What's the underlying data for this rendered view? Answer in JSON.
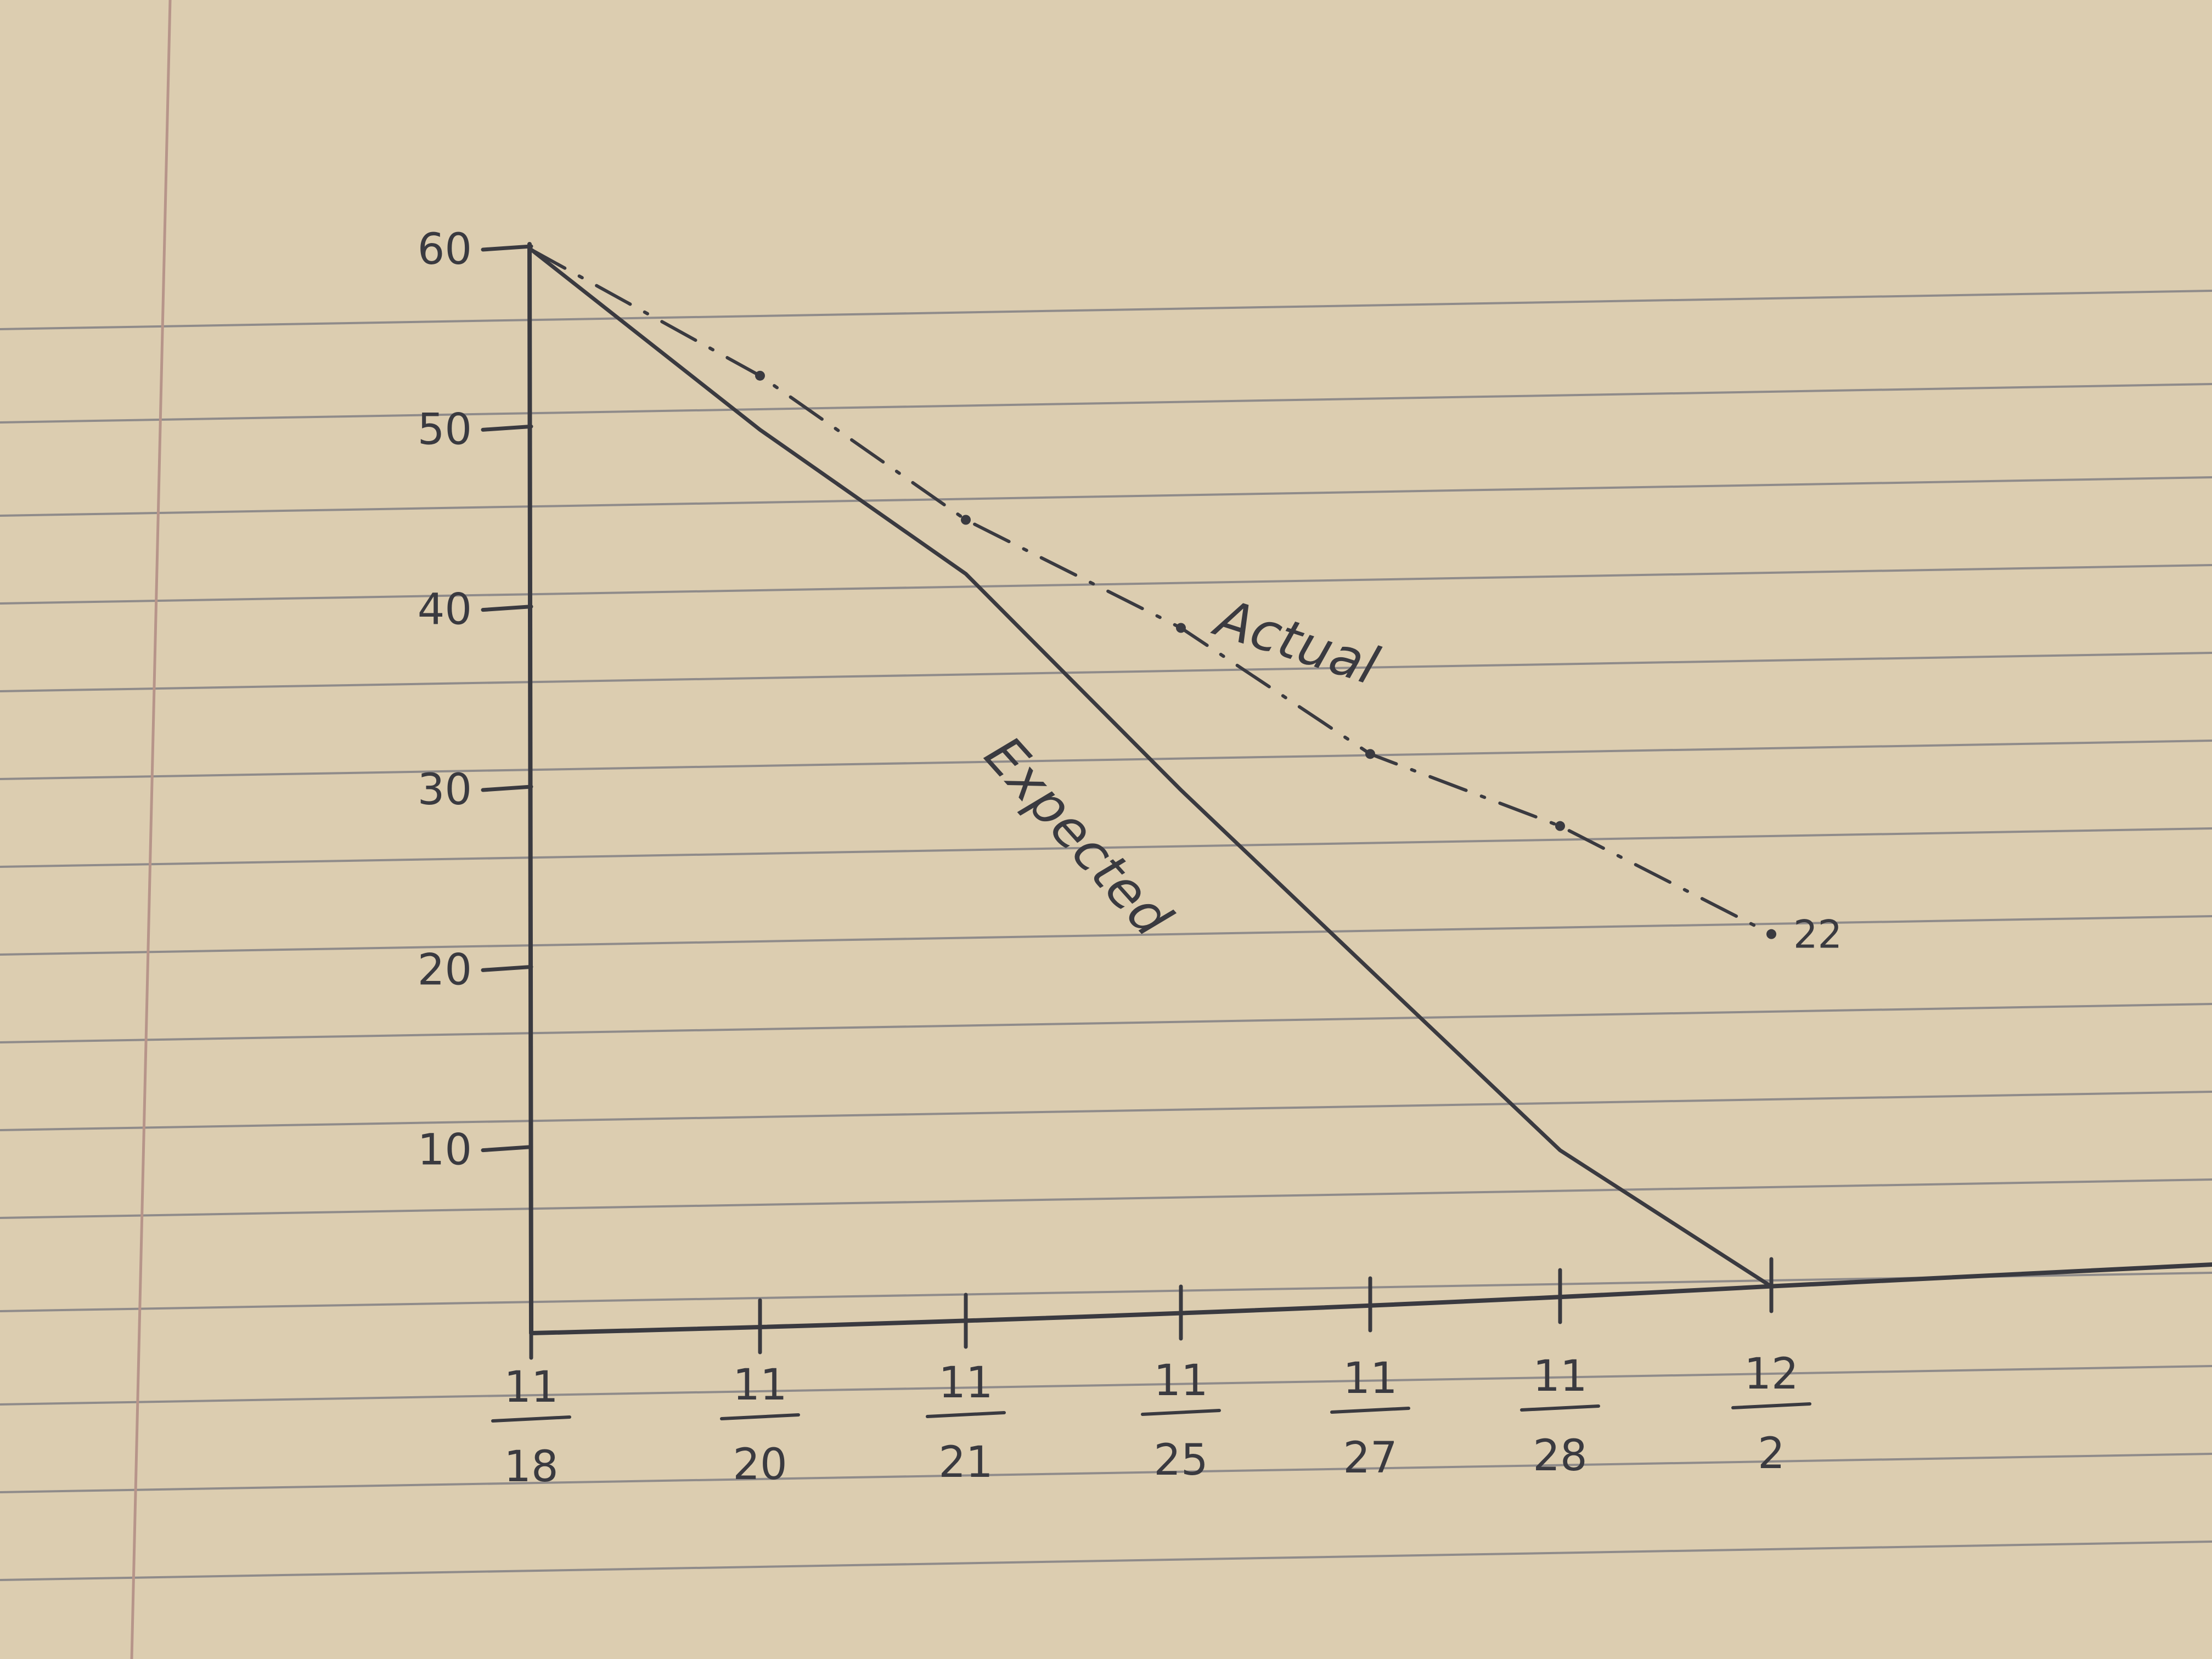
{
  "chart_data": {
    "type": "line",
    "title": "",
    "xlabel": "",
    "ylabel": "",
    "x": [
      "11/18",
      "11/20",
      "11/21",
      "11/25",
      "11/27",
      "11/28",
      "12/2"
    ],
    "x_ticks": [
      {
        "top": "11",
        "bottom": "18"
      },
      {
        "top": "11",
        "bottom": "20"
      },
      {
        "top": "11",
        "bottom": "21"
      },
      {
        "top": "11",
        "bottom": "25"
      },
      {
        "top": "11",
        "bottom": "27"
      },
      {
        "top": "11",
        "bottom": "28"
      },
      {
        "top": "12",
        "bottom": "2"
      }
    ],
    "y_ticks": [
      "60",
      "50",
      "40",
      "30",
      "20",
      "10"
    ],
    "y_tick_values": [
      60,
      50,
      40,
      30,
      20,
      10
    ],
    "ylim": [
      0,
      60
    ],
    "grid": false,
    "series": [
      {
        "name": "Expected",
        "style": "solid",
        "values": [
          60,
          50,
          42,
          30,
          20,
          10,
          0
        ]
      },
      {
        "name": "Actual",
        "style": "dash-dot",
        "values": [
          60,
          53,
          45,
          39,
          32,
          28,
          22
        ]
      }
    ],
    "annotations": [
      {
        "series": "Actual",
        "text": "22"
      }
    ],
    "colors": {
      "paper": "#dccdb0",
      "ruled_line": "#8f8b8a",
      "margin_line": "#b7958a",
      "ink": "#3a3a40"
    }
  }
}
